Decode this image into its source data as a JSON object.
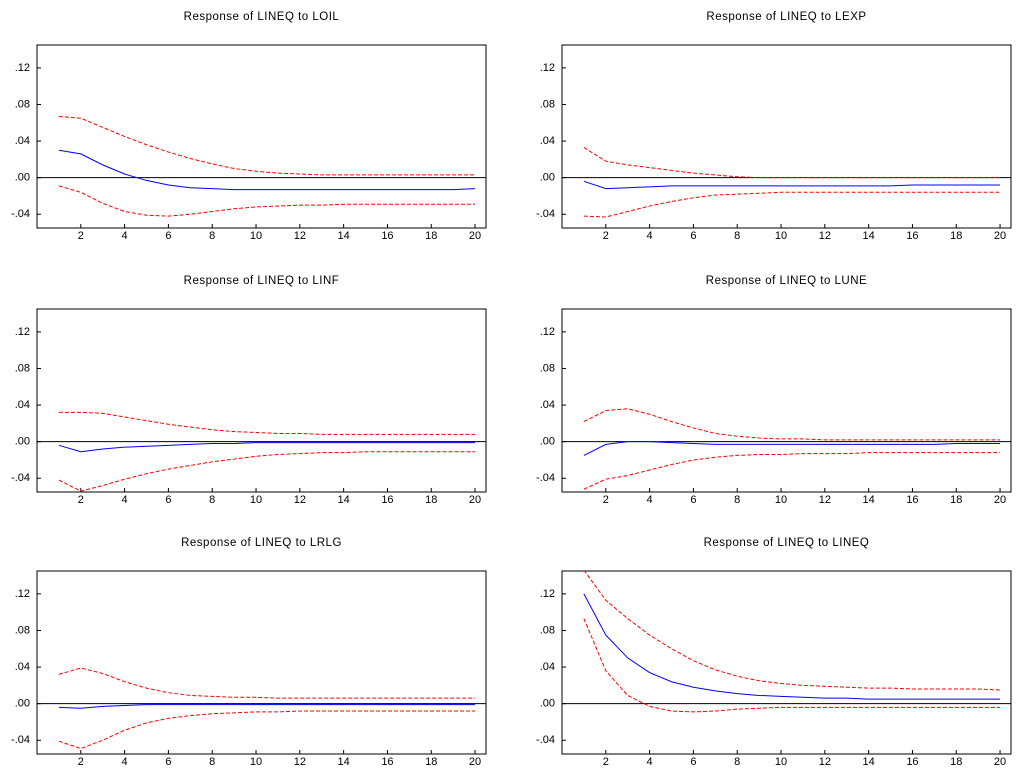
{
  "chart_data": [
    {
      "type": "line",
      "title": "Response of LINEQ to LOIL",
      "x": [
        1,
        2,
        3,
        4,
        5,
        6,
        7,
        8,
        9,
        10,
        11,
        12,
        13,
        14,
        15,
        16,
        17,
        18,
        19,
        20
      ],
      "xlim": [
        0,
        20.5
      ],
      "xticks": [
        2,
        4,
        6,
        8,
        10,
        12,
        14,
        16,
        18,
        20
      ],
      "ylim": [
        -0.055,
        0.145
      ],
      "yticks": [
        {
          "value": -0.04,
          "label": "-.04"
        },
        {
          "value": 0,
          "label": ".00"
        },
        {
          "value": 0.04,
          "label": ".04"
        },
        {
          "value": 0.08,
          "label": ".08"
        },
        {
          "value": 0.12,
          "label": ".12"
        }
      ],
      "series": [
        {
          "color": "#0000ff",
          "values": [
            0.03,
            0.026,
            0.014,
            0.004,
            -0.003,
            -0.008,
            -0.011,
            -0.012,
            -0.013,
            -0.013,
            -0.013,
            -0.013,
            -0.013,
            -0.013,
            -0.013,
            -0.013,
            -0.013,
            -0.013,
            -0.013,
            -0.012
          ]
        },
        {
          "color": "#ff0000",
          "dashed": true,
          "values": [
            0.067,
            0.065,
            0.055,
            0.045,
            0.036,
            0.028,
            0.021,
            0.015,
            0.01,
            0.007,
            0.005,
            0.004,
            0.003,
            0.003,
            0.003,
            0.003,
            0.003,
            0.003,
            0.003,
            0.003
          ]
        },
        {
          "color": "#ff0000",
          "dashed": true,
          "values": [
            -0.009,
            -0.016,
            -0.028,
            -0.037,
            -0.041,
            -0.042,
            -0.04,
            -0.037,
            -0.034,
            -0.032,
            -0.031,
            -0.03,
            -0.03,
            -0.029,
            -0.029,
            -0.029,
            -0.029,
            -0.029,
            -0.029,
            -0.029
          ]
        }
      ]
    },
    {
      "type": "line",
      "title": "Response of LINEQ to LEXP",
      "x": [
        1,
        2,
        3,
        4,
        5,
        6,
        7,
        8,
        9,
        10,
        11,
        12,
        13,
        14,
        15,
        16,
        17,
        18,
        19,
        20
      ],
      "xlim": [
        0,
        20.5
      ],
      "xticks": [
        2,
        4,
        6,
        8,
        10,
        12,
        14,
        16,
        18,
        20
      ],
      "ylim": [
        -0.055,
        0.145
      ],
      "yticks": [
        {
          "value": -0.04,
          "label": "-.04"
        },
        {
          "value": 0,
          "label": ".00"
        },
        {
          "value": 0.04,
          "label": ".04"
        },
        {
          "value": 0.08,
          "label": ".08"
        },
        {
          "value": 0.12,
          "label": ".12"
        }
      ],
      "series": [
        {
          "color": "#0000ff",
          "values": [
            -0.004,
            -0.012,
            -0.011,
            -0.01,
            -0.009,
            -0.009,
            -0.009,
            -0.009,
            -0.009,
            -0.009,
            -0.009,
            -0.009,
            -0.009,
            -0.009,
            -0.009,
            -0.008,
            -0.008,
            -0.008,
            -0.008,
            -0.008
          ]
        },
        {
          "color": "#ff0000",
          "dashed": true,
          "values": [
            0.033,
            0.018,
            0.014,
            0.011,
            0.008,
            0.005,
            0.003,
            0.001,
            0,
            0,
            0,
            0,
            0,
            0,
            0,
            0,
            0,
            0,
            0,
            0
          ]
        },
        {
          "color": "#ff0000",
          "dashed": true,
          "values": [
            -0.042,
            -0.043,
            -0.037,
            -0.031,
            -0.026,
            -0.022,
            -0.019,
            -0.018,
            -0.017,
            -0.016,
            -0.016,
            -0.016,
            -0.016,
            -0.016,
            -0.016,
            -0.016,
            -0.016,
            -0.016,
            -0.016,
            -0.016
          ]
        }
      ]
    },
    {
      "type": "line",
      "title": "Response of LINEQ to LINF",
      "x": [
        1,
        2,
        3,
        4,
        5,
        6,
        7,
        8,
        9,
        10,
        11,
        12,
        13,
        14,
        15,
        16,
        17,
        18,
        19,
        20
      ],
      "xlim": [
        0,
        20.5
      ],
      "xticks": [
        2,
        4,
        6,
        8,
        10,
        12,
        14,
        16,
        18,
        20
      ],
      "ylim": [
        -0.055,
        0.145
      ],
      "yticks": [
        {
          "value": -0.04,
          "label": "-.04"
        },
        {
          "value": 0,
          "label": ".00"
        },
        {
          "value": 0.04,
          "label": ".04"
        },
        {
          "value": 0.08,
          "label": ".08"
        },
        {
          "value": 0.12,
          "label": ".12"
        }
      ],
      "series": [
        {
          "color": "#0000ff",
          "values": [
            -0.004,
            -0.011,
            -0.008,
            -0.006,
            -0.005,
            -0.004,
            -0.003,
            -0.002,
            -0.002,
            -0.001,
            -0.001,
            -0.001,
            -0.001,
            -0.001,
            -0.001,
            -0.001,
            -0.001,
            -0.001,
            -0.001,
            -0.001
          ]
        },
        {
          "color": "#ff0000",
          "dashed": true,
          "values": [
            0.032,
            0.032,
            0.031,
            0.027,
            0.023,
            0.019,
            0.016,
            0.013,
            0.011,
            0.01,
            0.009,
            0.009,
            0.008,
            0.008,
            0.008,
            0.008,
            0.008,
            0.008,
            0.008,
            0.008
          ]
        },
        {
          "color": "#ff0000",
          "dashed": true,
          "values": [
            -0.042,
            -0.054,
            -0.048,
            -0.041,
            -0.035,
            -0.03,
            -0.026,
            -0.022,
            -0.019,
            -0.016,
            -0.014,
            -0.013,
            -0.012,
            -0.012,
            -0.011,
            -0.011,
            -0.011,
            -0.011,
            -0.011,
            -0.011
          ]
        }
      ]
    },
    {
      "type": "line",
      "title": "Response of LINEQ to LUNE",
      "x": [
        1,
        2,
        3,
        4,
        5,
        6,
        7,
        8,
        9,
        10,
        11,
        12,
        13,
        14,
        15,
        16,
        17,
        18,
        19,
        20
      ],
      "xlim": [
        0,
        20.5
      ],
      "xticks": [
        2,
        4,
        6,
        8,
        10,
        12,
        14,
        16,
        18,
        20
      ],
      "ylim": [
        -0.055,
        0.145
      ],
      "yticks": [
        {
          "value": -0.04,
          "label": "-.04"
        },
        {
          "value": 0,
          "label": ".00"
        },
        {
          "value": 0.04,
          "label": ".04"
        },
        {
          "value": 0.08,
          "label": ".08"
        },
        {
          "value": 0.12,
          "label": ".12"
        }
      ],
      "series": [
        {
          "color": "#0000ff",
          "values": [
            -0.015,
            -0.003,
            0,
            0,
            -0.001,
            -0.002,
            -0.003,
            -0.003,
            -0.003,
            -0.003,
            -0.003,
            -0.003,
            -0.003,
            -0.003,
            -0.003,
            -0.003,
            -0.003,
            -0.002,
            -0.002,
            -0.002
          ]
        },
        {
          "color": "#ff0000",
          "dashed": true,
          "values": [
            0.022,
            0.034,
            0.036,
            0.03,
            0.022,
            0.015,
            0.009,
            0.006,
            0.004,
            0.003,
            0.003,
            0.002,
            0.002,
            0.002,
            0.002,
            0.002,
            0.002,
            0.002,
            0.002,
            0.002
          ]
        },
        {
          "color": "#ff0000",
          "dashed": true,
          "values": [
            -0.052,
            -0.041,
            -0.037,
            -0.031,
            -0.025,
            -0.02,
            -0.017,
            -0.015,
            -0.014,
            -0.014,
            -0.013,
            -0.013,
            -0.013,
            -0.012,
            -0.012,
            -0.012,
            -0.012,
            -0.012,
            -0.012,
            -0.012
          ]
        }
      ]
    },
    {
      "type": "line",
      "title": "Response of LINEQ to LRLG",
      "x": [
        1,
        2,
        3,
        4,
        5,
        6,
        7,
        8,
        9,
        10,
        11,
        12,
        13,
        14,
        15,
        16,
        17,
        18,
        19,
        20
      ],
      "xlim": [
        0,
        20.5
      ],
      "xticks": [
        2,
        4,
        6,
        8,
        10,
        12,
        14,
        16,
        18,
        20
      ],
      "ylim": [
        -0.055,
        0.145
      ],
      "yticks": [
        {
          "value": -0.04,
          "label": "-.04"
        },
        {
          "value": 0,
          "label": ".00"
        },
        {
          "value": 0.04,
          "label": ".04"
        },
        {
          "value": 0.08,
          "label": ".08"
        },
        {
          "value": 0.12,
          "label": ".12"
        }
      ],
      "series": [
        {
          "color": "#0000ff",
          "values": [
            -0.004,
            -0.005,
            -0.003,
            -0.002,
            -0.001,
            -0.001,
            -0.001,
            -0.001,
            -0.001,
            -0.001,
            -0.001,
            -0.001,
            -0.001,
            -0.001,
            -0.001,
            -0.001,
            -0.001,
            -0.001,
            -0.001,
            -0.001
          ]
        },
        {
          "color": "#ff0000",
          "dashed": true,
          "values": [
            0.032,
            0.039,
            0.033,
            0.024,
            0.017,
            0.012,
            0.009,
            0.008,
            0.007,
            0.007,
            0.006,
            0.006,
            0.006,
            0.006,
            0.006,
            0.006,
            0.006,
            0.006,
            0.006,
            0.006
          ]
        },
        {
          "color": "#ff0000",
          "dashed": true,
          "values": [
            -0.041,
            -0.049,
            -0.04,
            -0.029,
            -0.021,
            -0.016,
            -0.013,
            -0.011,
            -0.01,
            -0.009,
            -0.009,
            -0.008,
            -0.008,
            -0.008,
            -0.008,
            -0.008,
            -0.008,
            -0.008,
            -0.008,
            -0.008
          ]
        }
      ]
    },
    {
      "type": "line",
      "title": "Response of LINEQ to LINEQ",
      "x": [
        1,
        2,
        3,
        4,
        5,
        6,
        7,
        8,
        9,
        10,
        11,
        12,
        13,
        14,
        15,
        16,
        17,
        18,
        19,
        20
      ],
      "xlim": [
        0,
        20.5
      ],
      "xticks": [
        2,
        4,
        6,
        8,
        10,
        12,
        14,
        16,
        18,
        20
      ],
      "ylim": [
        -0.055,
        0.145
      ],
      "yticks": [
        {
          "value": -0.04,
          "label": "-.04"
        },
        {
          "value": 0,
          "label": ".00"
        },
        {
          "value": 0.04,
          "label": ".04"
        },
        {
          "value": 0.08,
          "label": ".08"
        },
        {
          "value": 0.12,
          "label": ".12"
        }
      ],
      "series": [
        {
          "color": "#0000ff",
          "values": [
            0.12,
            0.075,
            0.05,
            0.034,
            0.024,
            0.018,
            0.014,
            0.011,
            0.009,
            0.008,
            0.007,
            0.006,
            0.006,
            0.005,
            0.005,
            0.005,
            0.005,
            0.005,
            0.005,
            0.005
          ]
        },
        {
          "color": "#ff0000",
          "dashed": true,
          "values": [
            0.146,
            0.113,
            0.093,
            0.075,
            0.06,
            0.047,
            0.037,
            0.03,
            0.025,
            0.022,
            0.02,
            0.019,
            0.018,
            0.017,
            0.017,
            0.016,
            0.016,
            0.016,
            0.016,
            0.015
          ]
        },
        {
          "color": "#ff0000",
          "dashed": true,
          "values": [
            0.093,
            0.036,
            0.009,
            -0.003,
            -0.008,
            -0.009,
            -0.008,
            -0.006,
            -0.005,
            -0.004,
            -0.004,
            -0.004,
            -0.004,
            -0.004,
            -0.004,
            -0.004,
            -0.004,
            -0.004,
            -0.004,
            -0.004
          ]
        }
      ]
    }
  ]
}
